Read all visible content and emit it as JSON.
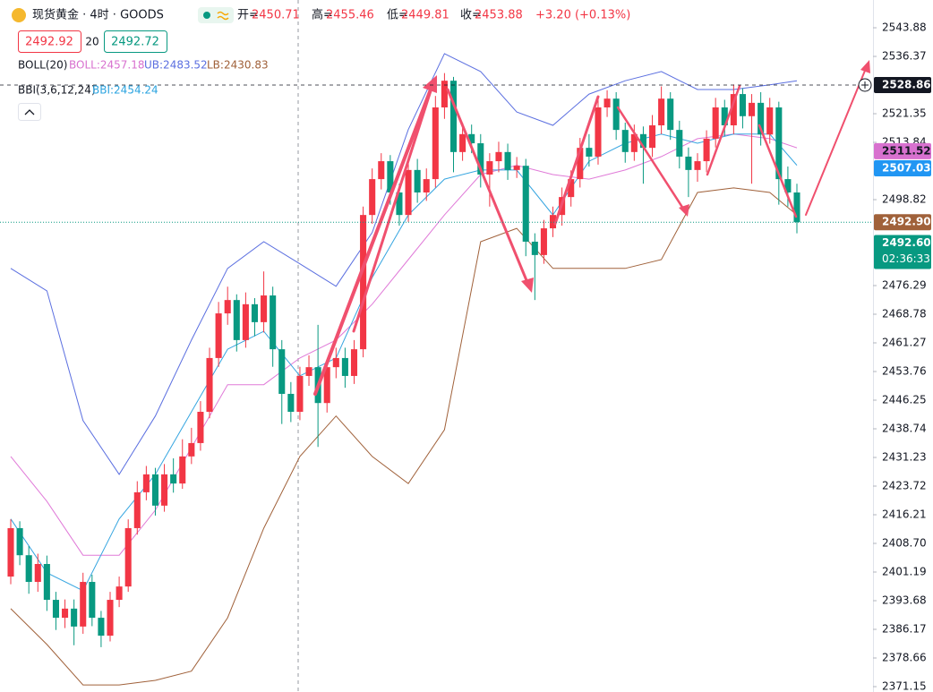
{
  "chart_data": {
    "type": "candlestick",
    "title": "现货黄金 · 4时 · GOODS",
    "ohlc_labels": [
      "开=",
      "高=",
      "低=",
      "收="
    ],
    "ohlc_values": [
      "2450.71",
      "2455.46",
      "2449.81",
      "2453.88"
    ],
    "change": "+3.20 (+0.13%)",
    "sell_price": "2492.92",
    "spread": "20",
    "buy_price": "2492.72",
    "indicator_legends": [
      {
        "title": "BOLL(20)",
        "items": [
          "BOLL:2457.18",
          "UB:2483.52",
          "LB:2430.83"
        ],
        "colors": [
          "#d871cf",
          "#5b6fe0",
          "#a0613a"
        ]
      },
      {
        "title": "BBI(3,6,12,24)",
        "items": [
          "BBI:2454.24"
        ],
        "colors": [
          "#2ca4e0"
        ]
      }
    ],
    "up_color": "#f23645",
    "down_color": "#089981",
    "grid": false,
    "ylim": [
      2369.74,
      2551.16
    ],
    "yticks": [
      2543.88,
      2536.37,
      2521.35,
      2513.84,
      2498.82,
      2476.29,
      2468.78,
      2461.27,
      2453.76,
      2446.25,
      2438.74,
      2431.23,
      2423.72,
      2416.21,
      {
        "value": 2408.7,
        "label": "2408.70"
      },
      2401.19,
      2393.68,
      2386.17,
      2378.66,
      2371.15
    ],
    "open": [
      2400.0,
      2412.7,
      2405.6,
      2398.6,
      2403.3,
      2393.9,
      2389.2,
      2391.6,
      2386.9,
      2398.6,
      2389.2,
      2384.5,
      2393.9,
      2397.4,
      2412.7,
      2422.1,
      2426.8,
      2418.6,
      2426.8,
      2424.4,
      2431.5,
      2435.0,
      2443.2,
      2457.3,
      2469.0,
      2472.5,
      2462.0,
      2471.4,
      2466.7,
      2473.7,
      2459.6,
      2447.9,
      2443.2,
      2452.6,
      2454.9,
      2445.5,
      2454.9,
      2457.3,
      2452.6,
      2459.6,
      2494.8,
      2504.2,
      2508.9,
      2500.7,
      2494.8,
      2506.6,
      2500.7,
      2504.2,
      2523.0,
      2530.0,
      2511.3,
      2516.0,
      2513.6,
      2505.4,
      2508.9,
      2511.3,
      2506.6,
      2507.7,
      2487.8,
      2484.3,
      2491.3,
      2494.8,
      2499.5,
      2504.2,
      2512.4,
      2510.1,
      2523.0,
      2525.3,
      2517.1,
      2511.3,
      2516.0,
      2512.4,
      2518.3,
      2525.3,
      2517.1,
      2510.1,
      2506.6,
      2508.9,
      2514.8,
      2523.0,
      2518.3,
      2526.5,
      2520.7,
      2524.2,
      2515.9,
      2523.0,
      2504.2,
      2500.7
    ],
    "high": [
      2415.0,
      2414.5,
      2408.0,
      2406.0,
      2405.5,
      2396.0,
      2394.0,
      2394.0,
      2401.0,
      2400.5,
      2391.0,
      2396.0,
      2400.0,
      2415.0,
      2425.0,
      2429.0,
      2428.5,
      2429.5,
      2431.0,
      2436.0,
      2439.0,
      2446.0,
      2460.0,
      2472.0,
      2476.0,
      2474.0,
      2474.5,
      2473.0,
      2480.0,
      2476.0,
      2462.0,
      2451.0,
      2455.0,
      2458.0,
      2466.0,
      2457.0,
      2460.0,
      2460.0,
      2462.0,
      2497.0,
      2507.0,
      2511.0,
      2510.5,
      2503.0,
      2509.0,
      2509.5,
      2507.0,
      2526.0,
      2532.0,
      2531.0,
      2519.0,
      2518.5,
      2516.0,
      2511.0,
      2514.0,
      2513.5,
      2510.0,
      2509.5,
      2490.0,
      2493.5,
      2497.0,
      2502.0,
      2506.5,
      2515.0,
      2516.0,
      2525.5,
      2527.5,
      2527.0,
      2519.0,
      2518.5,
      2518.0,
      2521.0,
      2528.5,
      2527.0,
      2519.5,
      2512.5,
      2511.0,
      2517.0,
      2525.5,
      2525.0,
      2529.0,
      2528.0,
      2526.5,
      2527.0,
      2525.5,
      2524.5,
      2507.5,
      2503.0
    ],
    "low": [
      2398.0,
      2403.0,
      2395.5,
      2396.0,
      2391.0,
      2386.0,
      2386.5,
      2382.0,
      2385.0,
      2387.0,
      2381.5,
      2383.0,
      2392.0,
      2396.0,
      2411.0,
      2420.0,
      2416.0,
      2417.0,
      2422.0,
      2423.0,
      2429.5,
      2433.0,
      2441.5,
      2455.0,
      2466.0,
      2459.0,
      2460.0,
      2463.0,
      2464.0,
      2455.0,
      2440.0,
      2440.5,
      2441.0,
      2450.0,
      2434.0,
      2443.0,
      2452.0,
      2449.5,
      2450.5,
      2457.5,
      2492.5,
      2501.5,
      2497.5,
      2492.0,
      2493.0,
      2498.0,
      2498.5,
      2502.0,
      2520.0,
      2506.0,
      2509.0,
      2511.0,
      2502.0,
      2497.0,
      2506.0,
      2504.0,
      2504.5,
      2484.0,
      2472.5,
      2482.0,
      2489.0,
      2492.0,
      2497.0,
      2502.0,
      2507.5,
      2508.0,
      2520.5,
      2514.5,
      2508.5,
      2509.0,
      2503.0,
      2510.0,
      2516.0,
      2514.5,
      2507.0,
      2499.5,
      2503.5,
      2506.0,
      2512.5,
      2515.5,
      2516.0,
      2517.5,
      2503.0,
      2513.0,
      2513.5,
      2497.5,
      2497.0,
      2490.0
    ],
    "close": [
      2412.7,
      2405.6,
      2398.6,
      2403.3,
      2393.9,
      2389.2,
      2391.6,
      2386.9,
      2398.6,
      2389.2,
      2384.5,
      2393.9,
      2397.4,
      2412.7,
      2422.1,
      2426.8,
      2418.6,
      2426.8,
      2424.4,
      2431.5,
      2435.0,
      2443.2,
      2457.3,
      2469.0,
      2472.5,
      2462.0,
      2471.4,
      2466.7,
      2473.7,
      2459.6,
      2447.9,
      2443.2,
      2452.6,
      2454.9,
      2445.5,
      2454.9,
      2457.3,
      2452.6,
      2459.6,
      2494.8,
      2504.2,
      2508.9,
      2500.7,
      2494.8,
      2506.6,
      2500.7,
      2504.2,
      2523.0,
      2530.0,
      2511.3,
      2516.0,
      2513.6,
      2505.4,
      2508.9,
      2511.3,
      2506.6,
      2507.7,
      2487.8,
      2484.3,
      2491.3,
      2494.8,
      2499.5,
      2504.2,
      2512.4,
      2510.1,
      2523.0,
      2525.3,
      2517.1,
      2511.3,
      2516.0,
      2512.4,
      2518.3,
      2525.3,
      2517.1,
      2510.1,
      2506.6,
      2508.9,
      2514.8,
      2523.0,
      2518.3,
      2526.5,
      2520.7,
      2524.2,
      2515.9,
      2523.0,
      2504.2,
      2500.7,
      2492.9
    ],
    "indicators": [
      {
        "color": "#5b6fe0",
        "x": [
          0,
          4,
          8,
          12,
          16,
          20,
          24,
          28,
          32,
          36,
          40,
          44,
          48,
          52,
          56,
          60,
          64,
          68,
          72,
          76,
          80,
          84,
          87
        ],
        "values": [
          2480.8,
          2474.9,
          2440.9,
          2426.8,
          2442.1,
          2462.0,
          2480.8,
          2487.8,
          2482.0,
          2476.1,
          2490.2,
          2517.2,
          2537.1,
          2532.4,
          2521.8,
          2518.3,
          2526.5,
          2530.0,
          2532.4,
          2527.7,
          2527.7,
          2528.9,
          2530.0
        ]
      },
      {
        "color": "#e07ad8",
        "x": [
          0,
          4,
          8,
          12,
          16,
          20,
          24,
          28,
          32,
          36,
          40,
          44,
          48,
          52,
          56,
          60,
          64,
          68,
          72,
          76,
          80,
          84,
          87
        ],
        "values": [
          2431.5,
          2419.7,
          2405.6,
          2405.6,
          2417.4,
          2433.8,
          2450.3,
          2450.3,
          2457.3,
          2462.0,
          2471.4,
          2483.1,
          2494.8,
          2505.4,
          2507.8,
          2505.4,
          2504.2,
          2506.6,
          2510.1,
          2514.8,
          2516.0,
          2514.8,
          2512.4
        ]
      },
      {
        "color": "#a0613a",
        "x": [
          0,
          4,
          8,
          12,
          16,
          20,
          24,
          28,
          32,
          36,
          40,
          44,
          48,
          52,
          56,
          60,
          64,
          68,
          72,
          76,
          80,
          84,
          87
        ],
        "values": [
          2391.6,
          2382.2,
          2371.6,
          2371.6,
          2372.8,
          2375.2,
          2389.2,
          2412.7,
          2431.5,
          2442.1,
          2431.5,
          2424.4,
          2438.5,
          2487.8,
          2491.3,
          2480.8,
          2480.8,
          2480.8,
          2483.1,
          2500.7,
          2501.9,
          2500.7,
          2494.8
        ]
      },
      {
        "color": "#35a5e0",
        "x": [
          0,
          4,
          8,
          12,
          16,
          20,
          24,
          28,
          32,
          36,
          40,
          44,
          48,
          52,
          56,
          60,
          64,
          68,
          72,
          76,
          80,
          84,
          87
        ],
        "values": [
          2415.1,
          2401.0,
          2396.3,
          2415.1,
          2426.8,
          2443.2,
          2459.6,
          2464.3,
          2452.6,
          2457.3,
          2478.4,
          2494.8,
          2504.2,
          2506.6,
          2506.6,
          2494.8,
          2508.9,
          2513.6,
          2516.0,
          2513.6,
          2516.0,
          2516.0,
          2507.8
        ]
      }
    ],
    "price_tags": [
      {
        "value": 2528.86,
        "color": "#131722",
        "text_color": "#ffffff"
      },
      {
        "value": 2511.52,
        "color": "#d871cf",
        "text_color": "#131722"
      },
      {
        "value": 2507.03,
        "color": "#2196f3",
        "text_color": "#ffffff"
      },
      {
        "value": {
          "value": 2492.9,
          "label": "2492.90"
        },
        "color": "#a0613a",
        "text_color": "#ffffff"
      },
      {
        "value": {
          "value": 2492.6,
          "label": "2492.60"
        },
        "color": "#089981",
        "text_color": "#ffffff"
      }
    ],
    "countdown": "02:36:33"
  }
}
